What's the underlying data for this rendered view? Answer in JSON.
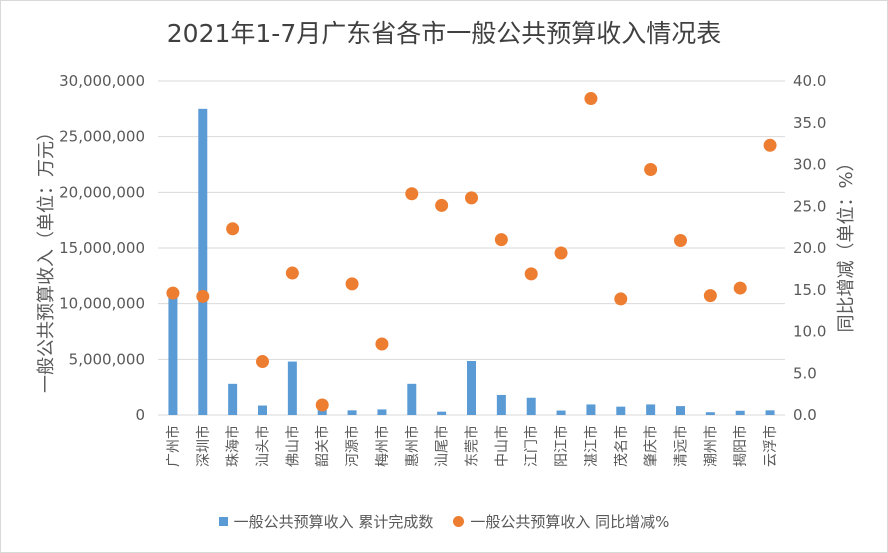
{
  "chart_data": {
    "type": "bar",
    "title": "2021年1-7月广东省各市一般公共预算收入情况表",
    "ylabel_left": "一般公共预算收入（单位：万元）",
    "ylabel_right": "同比增减（单位：%）",
    "ylim_left": [
      0,
      30000000
    ],
    "ylim_right": [
      0,
      40
    ],
    "yticks_left": [
      "0",
      "5,000,000",
      "10,000,000",
      "15,000,000",
      "20,000,000",
      "25,000,000",
      "30,000,000"
    ],
    "yticks_right": [
      "0.0",
      "5.0",
      "10.0",
      "15.0",
      "20.0",
      "25.0",
      "30.0",
      "35.0",
      "40.0"
    ],
    "categories": [
      "广州市",
      "深圳市",
      "珠海市",
      "汕头市",
      "佛山市",
      "韶关市",
      "河源市",
      "梅州市",
      "惠州市",
      "汕尾市",
      "东莞市",
      "中山市",
      "江门市",
      "阳江市",
      "湛江市",
      "茂名市",
      "肇庆市",
      "清远市",
      "潮州市",
      "揭阳市",
      "云浮市"
    ],
    "series": [
      {
        "name": "一般公共预算收入 累计完成数",
        "type": "bar",
        "axis": "left",
        "values": [
          10950000,
          27500000,
          2800000,
          850000,
          4800000,
          500000,
          420000,
          500000,
          2800000,
          300000,
          4850000,
          1800000,
          1550000,
          400000,
          950000,
          750000,
          950000,
          800000,
          250000,
          380000,
          420000
        ]
      },
      {
        "name": "一般公共预算收入 同比增减%",
        "type": "scatter",
        "axis": "right",
        "values": [
          14.6,
          14.2,
          22.3,
          6.4,
          17.0,
          1.2,
          15.7,
          8.5,
          26.5,
          25.1,
          26.0,
          21.0,
          16.9,
          19.4,
          37.9,
          13.9,
          29.4,
          20.9,
          14.3,
          15.2,
          32.3
        ]
      }
    ],
    "colors": {
      "bar": "#5b9bd5",
      "dot": "#ed7d31",
      "grid": "#d9d9d9"
    },
    "grid": true,
    "legend": "bottom"
  }
}
